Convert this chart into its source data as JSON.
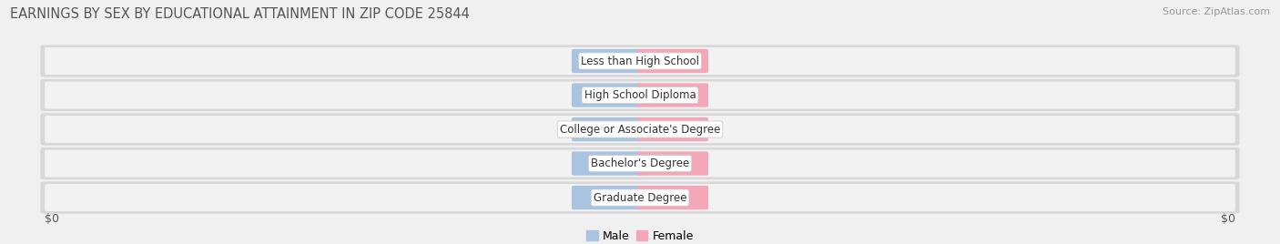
{
  "title": "EARNINGS BY SEX BY EDUCATIONAL ATTAINMENT IN ZIP CODE 25844",
  "source": "Source: ZipAtlas.com",
  "categories": [
    "Less than High School",
    "High School Diploma",
    "College or Associate's Degree",
    "Bachelor's Degree",
    "Graduate Degree"
  ],
  "male_values": [
    0,
    0,
    0,
    0,
    0
  ],
  "female_values": [
    0,
    0,
    0,
    0,
    0
  ],
  "male_color": "#a8c4e0",
  "female_color": "#f4a7b9",
  "bar_label_color": "#ffffff",
  "category_label_color": "#333333",
  "title_color": "#555555",
  "source_color": "#999999",
  "background_color": "#f0f0f0",
  "row_bg_color": "#e8e8e8",
  "row_inner_color": "#f8f8f8",
  "xlabel_left": "$0",
  "xlabel_right": "$0",
  "legend_male": "Male",
  "legend_female": "Female",
  "title_fontsize": 10.5,
  "label_fontsize": 9,
  "bar_value_fontsize": 7.5,
  "category_fontsize": 8.5,
  "source_fontsize": 8
}
